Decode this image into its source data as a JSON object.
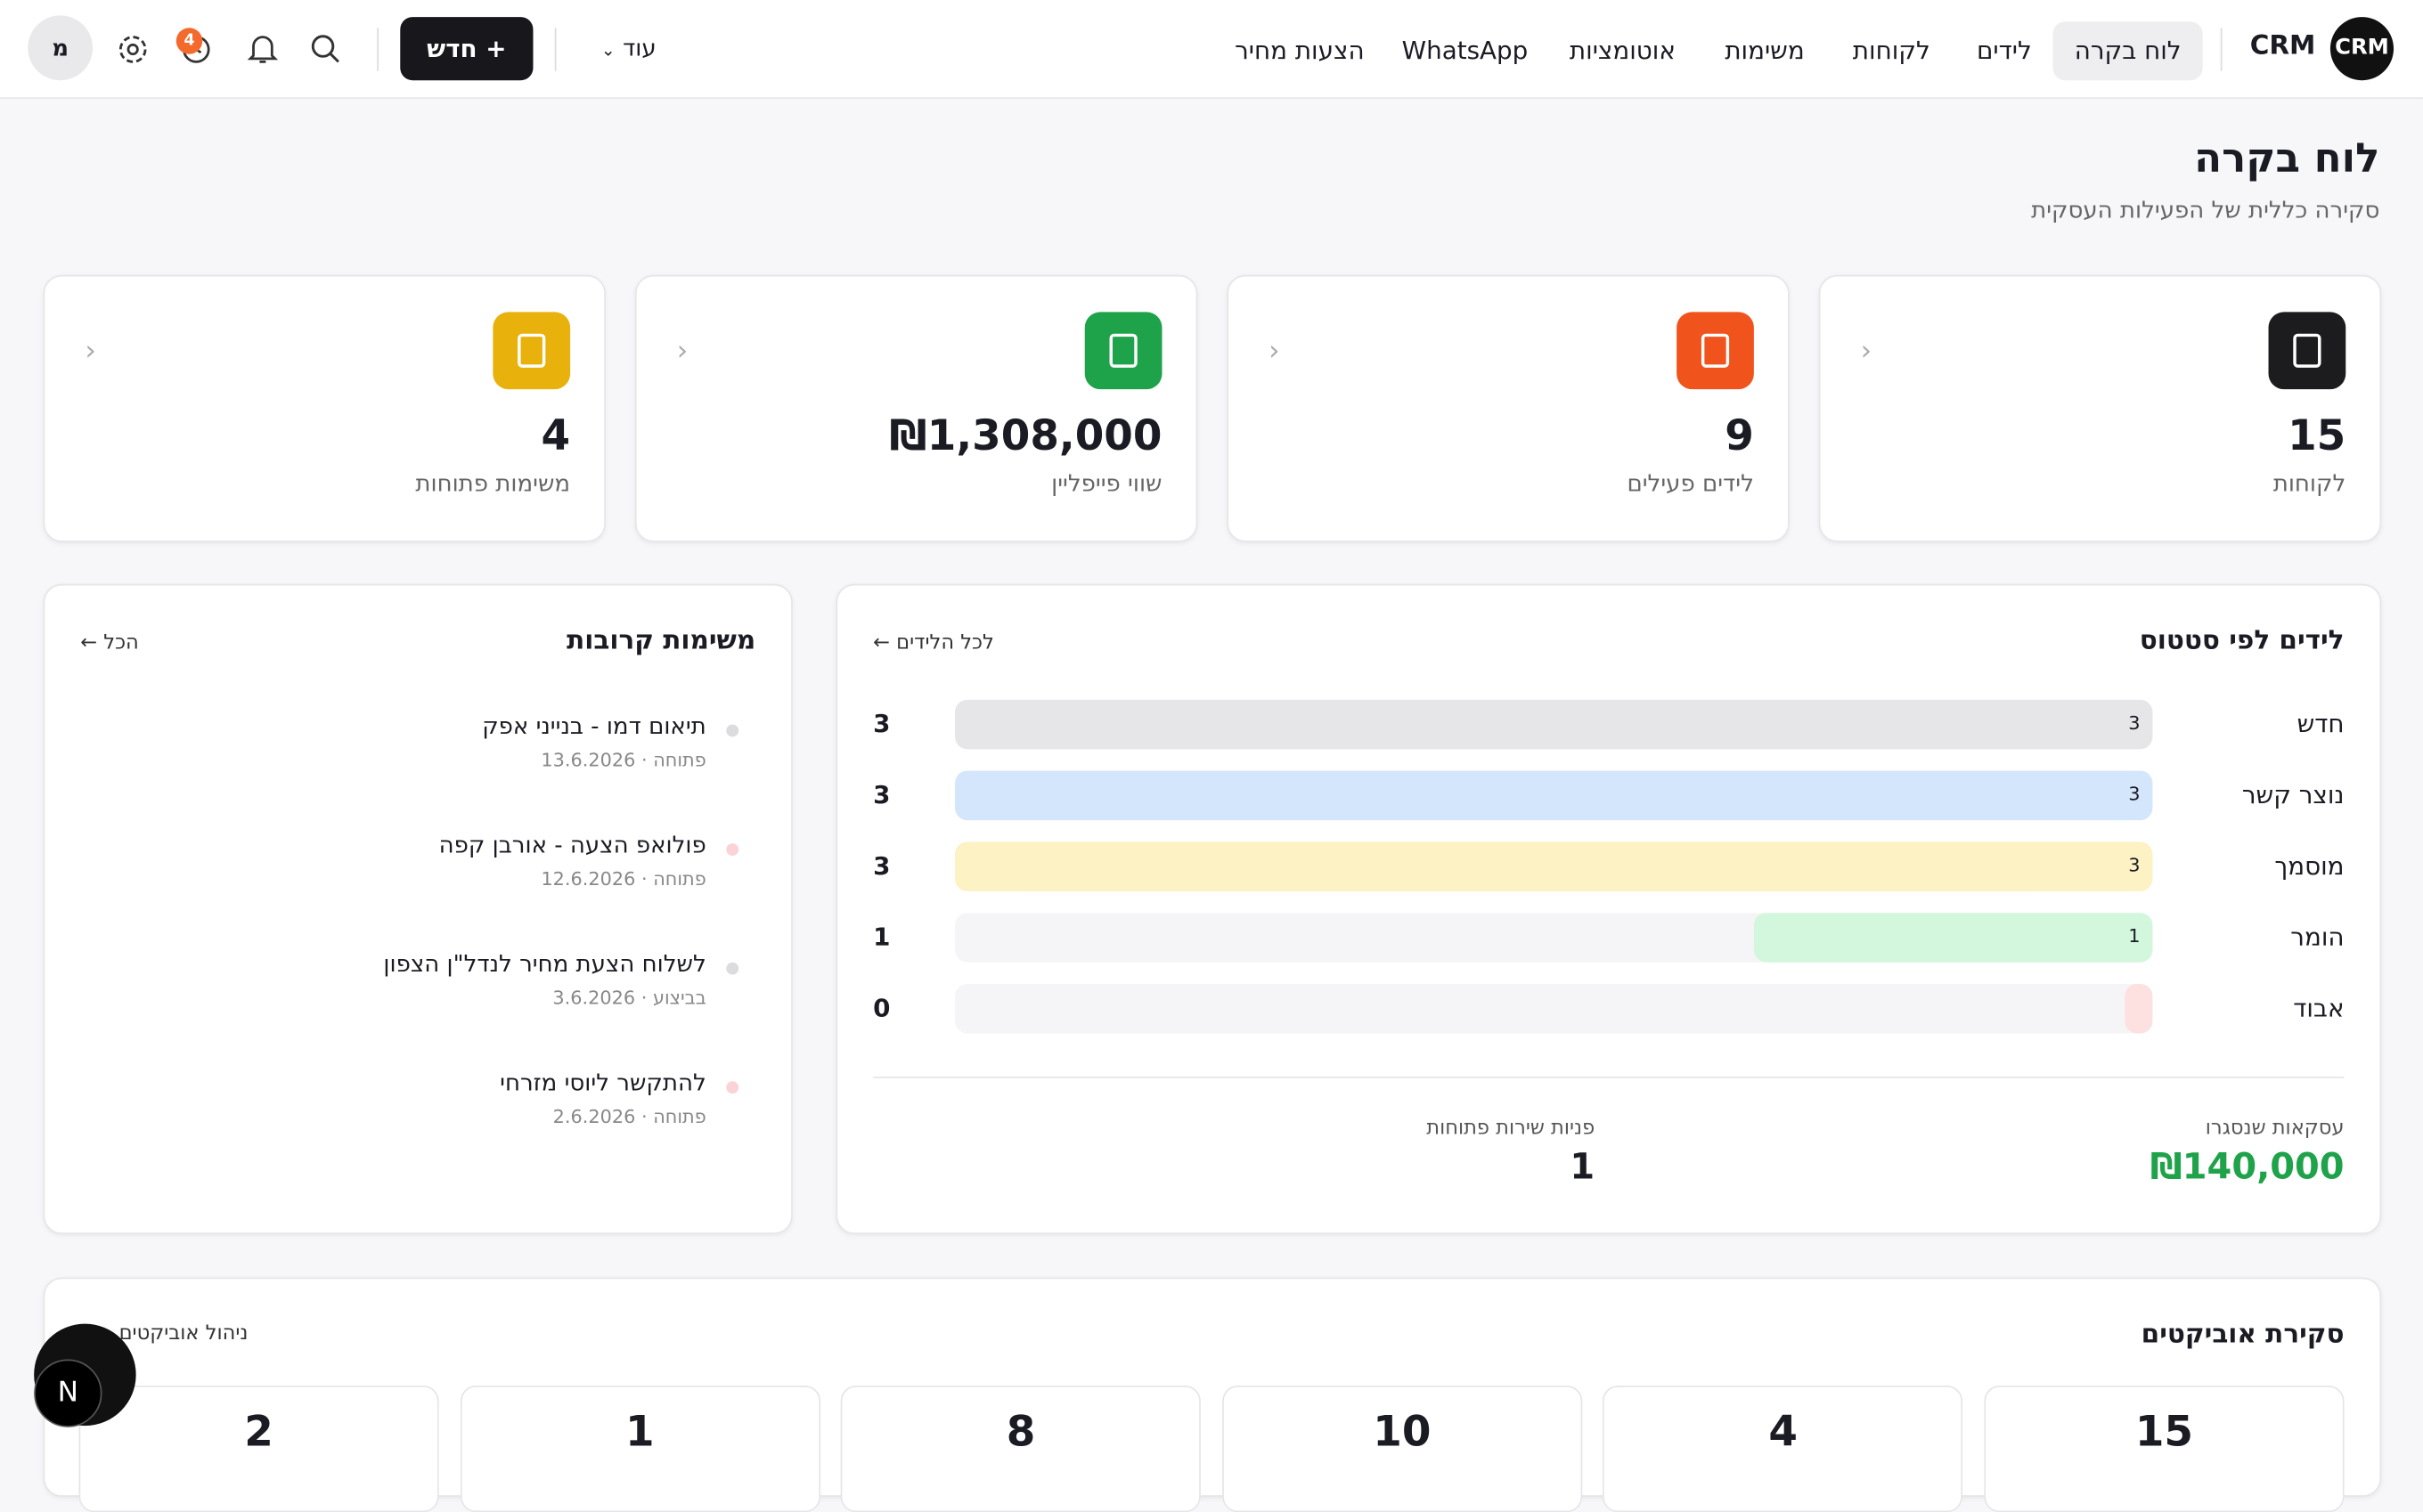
{
  "nav": {
    "logo": "CRM",
    "brand": "CRM",
    "items": [
      "לוח בקרה",
      "לידים",
      "לקוחות",
      "משימות",
      "אוטומציות",
      "WhatsApp",
      "הצעות מחיר"
    ],
    "more": "עוד",
    "new_button": "חדש",
    "notification_count": 4,
    "avatar": "מ"
  },
  "header": {
    "title": "לוח בקרה",
    "subtitle": "סקירה כללית של הפעילות העסקית"
  },
  "stats": [
    {
      "value": 15,
      "label": "לקוחות",
      "color": "#1c1c1e"
    },
    {
      "value": 9,
      "label": "לידים פעילים",
      "color": "#f0531c"
    },
    {
      "value": "₪1,308,000",
      "label": "שווי פייפליין",
      "color": "#1fa34a"
    },
    {
      "value": 4,
      "label": "משימות פתוחות",
      "color": "#e9b10c"
    }
  ],
  "leads_by_status": {
    "title": "לידים לפי סטטוס",
    "link": "לכל הלידים ←",
    "rows": [
      {
        "name": "חדש",
        "value": 3,
        "color": "#e6e6e8"
      },
      {
        "name": "נוצר קשר",
        "value": 3,
        "color": "#d3e6fb"
      },
      {
        "name": "מוסמך",
        "value": 3,
        "color": "#fdf2c4"
      },
      {
        "name": "הומר",
        "value": 1,
        "color": "#d3f7dc"
      },
      {
        "name": "אבוד",
        "value": 0,
        "color": "#fde0e0"
      }
    ]
  },
  "closed_deals": {
    "label": "עסקאות שנסגרו",
    "value": "₪140,000"
  },
  "open_tickets": {
    "label": "פניות שירות פתוחות",
    "value": 1
  },
  "upcoming_tasks": {
    "title": "משימות קרובות",
    "link": "הכל ←",
    "tasks": [
      {
        "title": "תיאום דמו - בנייני אפק",
        "meta": "פתוחה · 13.6.2026",
        "dot": "#dcdcdf"
      },
      {
        "title": "פולואפ הצעה - אורבן קפה",
        "meta": "פתוחה · 12.6.2026",
        "dot": "#fbd3d6"
      },
      {
        "title": "לשלוח הצעת מחיר לנדל\"ן הצפון",
        "meta": "בביצוע · 3.6.2026",
        "dot": "#dcdcdf"
      },
      {
        "title": "להתקשר ליוסי מזרחי",
        "meta": "פתוחה · 2.6.2026",
        "dot": "#fbd3d6"
      }
    ]
  },
  "objects": {
    "title": "סקירת אוביקטים",
    "link": "ניהול אוביקטים",
    "counts": [
      15,
      4,
      10,
      8,
      1,
      2
    ]
  }
}
